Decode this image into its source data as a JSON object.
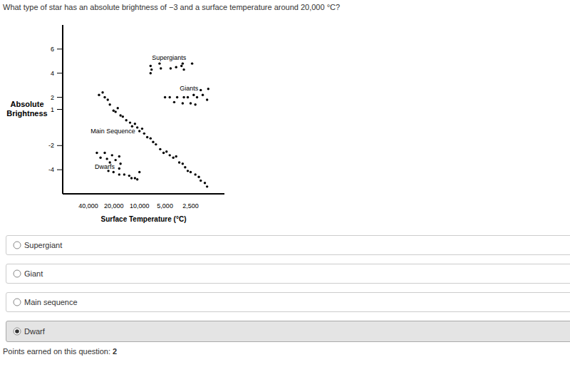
{
  "question": "What type of star has an absolute brightness of −3 and a surface temperature around 20,000 °C?",
  "chart_data": {
    "type": "scatter",
    "x_label": "Surface Temperature (°C)",
    "y_label": "Absolute Brightness",
    "log": "x",
    "xlim": [
      80000,
      1000
    ],
    "xticks": [
      {
        "value": 40000,
        "label": "40,000"
      },
      {
        "value": 20000,
        "label": "20,000"
      },
      {
        "value": 10000,
        "label": "10,000"
      },
      {
        "value": 5000,
        "label": "5,000"
      },
      {
        "value": 2500,
        "label": "2,500"
      }
    ],
    "ylim": [
      -6,
      8
    ],
    "yticks": [
      6,
      4,
      2,
      1,
      -2,
      -4
    ],
    "grid": false,
    "marker": "circle",
    "series": [
      {
        "name": "Supergiants",
        "color": "#000000",
        "x": [
          7400,
          7200,
          7400,
          5800,
          5600,
          4300,
          3700,
          3200,
          3100,
          3000,
          2400
        ],
        "y": [
          4.6,
          4.3,
          4.0,
          4.8,
          4.4,
          4.4,
          4.5,
          4.6,
          4.8,
          4.3,
          4.8
        ]
      },
      {
        "name": "Giants",
        "color": "#000000",
        "x": [
          5000,
          4400,
          3900,
          3600,
          3100,
          3000,
          2700,
          2500,
          2300,
          2200,
          2100,
          1900,
          1800,
          1600,
          1550
        ],
        "y": [
          2.0,
          2.0,
          1.6,
          2.0,
          1.5,
          2.0,
          2.0,
          1.5,
          2.2,
          1.4,
          2.0,
          2.6,
          2.2,
          1.8,
          2.7
        ]
      },
      {
        "name": "Main Sequence",
        "color": "#000000",
        "x": [
          29900,
          27100,
          25600,
          23600,
          22300,
          20200,
          19100,
          18000,
          16700,
          15700,
          14300,
          12900,
          12200,
          11300,
          10600,
          10000,
          9300,
          8800,
          8100,
          7400,
          6900,
          6400,
          5700,
          5200,
          4800,
          4400,
          4000,
          3700,
          3400,
          3100,
          2900,
          2700,
          2500,
          2200,
          2000,
          1900,
          1700,
          1600
        ],
        "y": [
          2.2,
          2.4,
          2.0,
          1.8,
          1.4,
          0.9,
          0.8,
          1.1,
          0.5,
          0.4,
          0.1,
          -0.1,
          -0.4,
          -0.2,
          -0.5,
          -0.8,
          -0.6,
          -1.0,
          -1.3,
          -1.4,
          -1.7,
          -1.9,
          -2.3,
          -2.6,
          -2.5,
          -2.8,
          -3.0,
          -2.9,
          -3.4,
          -3.5,
          -3.8,
          -4.1,
          -4.2,
          -4.4,
          -4.6,
          -4.9,
          -5.1,
          -5.4
        ]
      },
      {
        "name": "Dwarfs",
        "color": "#000000",
        "x": [
          31700,
          28700,
          25600,
          24100,
          22300,
          21000,
          19100,
          17300,
          16700,
          23200,
          20200,
          17300,
          17300,
          15100,
          13200,
          12400,
          11300,
          10000,
          10600
        ],
        "y": [
          -2.6,
          -3.0,
          -2.6,
          -3.1,
          -3.4,
          -2.8,
          -3.2,
          -2.9,
          -3.5,
          -4.1,
          -4.2,
          -3.9,
          -4.4,
          -4.4,
          -4.5,
          -4.7,
          -4.7,
          -4.2,
          -4.8
        ]
      }
    ]
  },
  "options": [
    "Supergiant",
    "Giant",
    "Main sequence",
    "Dwarf"
  ],
  "selected": "Dwarf",
  "points_label": "Points earned on this question:",
  "points": 2
}
